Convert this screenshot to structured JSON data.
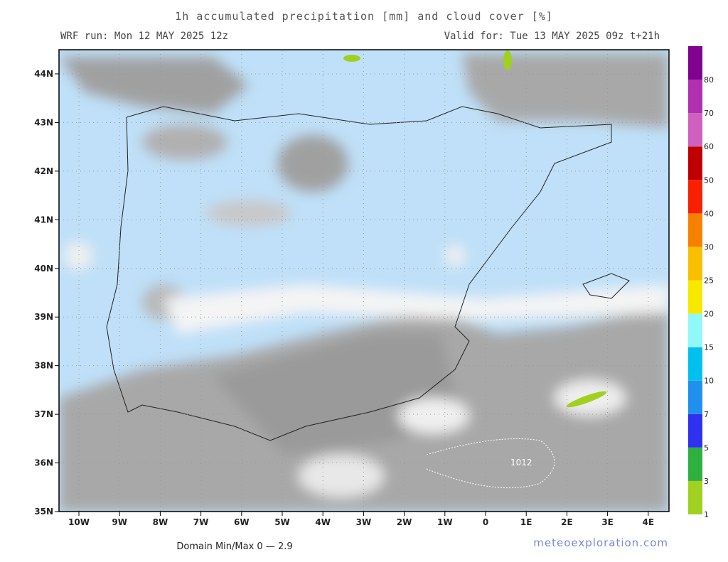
{
  "header": {
    "title": "1h accumulated precipitation [mm] and cloud cover [%]",
    "run": "WRF run: Mon 12 MAY 2025 12z",
    "valid": "Valid for: Tue 13 MAY 2025 09z  t+21h"
  },
  "map": {
    "lat_labels": [
      "35N",
      "36N",
      "37N",
      "38N",
      "39N",
      "40N",
      "41N",
      "42N",
      "43N",
      "44N"
    ],
    "lon_labels": [
      "10W",
      "9W",
      "8W",
      "7W",
      "6W",
      "5W",
      "4W",
      "3W",
      "2W",
      "1W",
      "0",
      "1E",
      "2E",
      "3E",
      "4E"
    ],
    "isobar_labels": [
      "1012"
    ]
  },
  "colorbar": {
    "labels": [
      "1",
      "3",
      "5",
      "7",
      "10",
      "15",
      "20",
      "25",
      "30",
      "40",
      "50",
      "60",
      "70",
      "80"
    ],
    "colors": [
      "#a0d020",
      "#30b040",
      "#3030f0",
      "#2090f0",
      "#00c0f0",
      "#90f8f8",
      "#f8e800",
      "#f8c000",
      "#f88000",
      "#f82000",
      "#c00000",
      "#d060c0",
      "#b030b0",
      "#800090"
    ]
  },
  "footer": {
    "minmax": "Domain Min/Max 0 — 2.9",
    "site": "meteoexploration.com"
  }
}
